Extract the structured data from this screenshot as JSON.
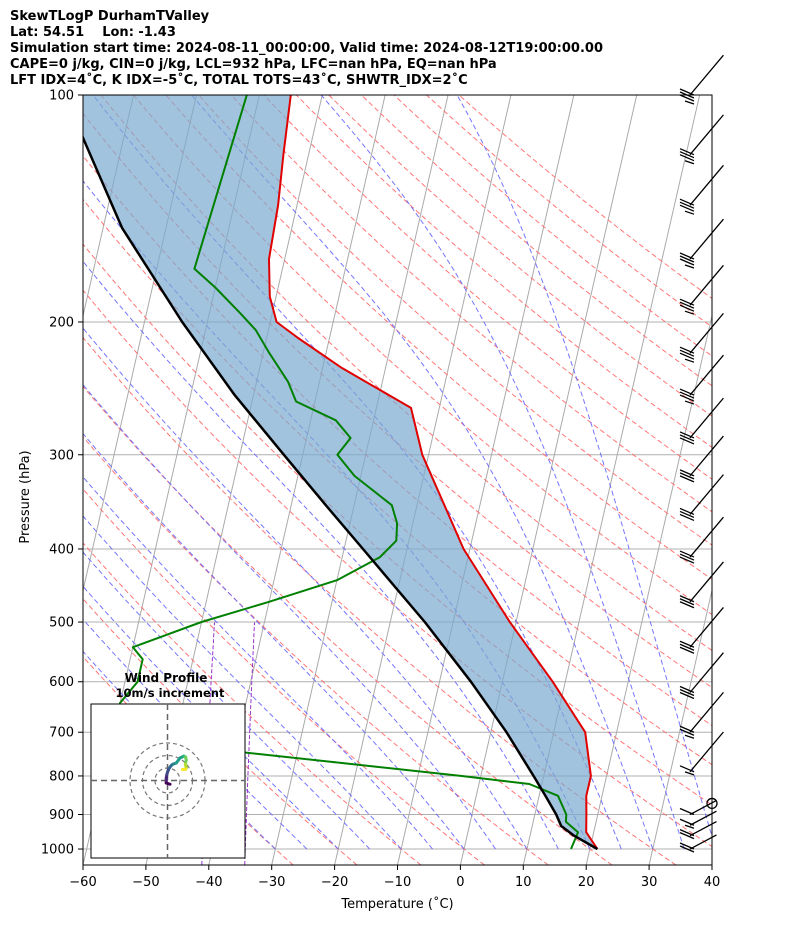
{
  "header": {
    "line1": "SkewTLogP DurhamTValley",
    "line2": "Lat: 54.51    Lon: -1.43",
    "line3": "Simulation start time: 2024-08-11_00:00:00, Valid time: 2024-08-12T19:00:00.00",
    "line4": "CAPE=0 j/kg, CIN=0 j/kg, LCL=932 hPa, LFC=nan hPa, EQ=nan hPa",
    "line5": "LFT IDX=4˚C, K IDX=-5˚C, TOTAL TOTS=43˚C, SHWTR_IDX=2˚C"
  },
  "chart_data": {
    "type": "line",
    "skew_t": true,
    "xlabel": "Temperature (˚C)",
    "ylabel": "Pressure (hPa)",
    "xlim": [
      -60,
      40
    ],
    "ylim": [
      1050,
      100
    ],
    "y_scale": "log",
    "grid": true,
    "xticks": [
      -60,
      -50,
      -40,
      -30,
      -20,
      -10,
      0,
      10,
      20,
      30,
      40
    ],
    "xtick_labels": [
      "−60",
      "−50",
      "−40",
      "−30",
      "−20",
      "−10",
      "0",
      "10",
      "20",
      "30",
      "40"
    ],
    "yticks": [
      100,
      200,
      300,
      400,
      500,
      600,
      700,
      800,
      900,
      1000
    ],
    "ytick_labels": [
      "100",
      "200",
      "300",
      "400",
      "500",
      "600",
      "700",
      "800",
      "900",
      "1000"
    ],
    "colors": {
      "temperature": "#e00000",
      "dewpoint": "#008000",
      "parcel": "#000000",
      "shade": "#7aa9cf",
      "dry_adiabat": "#ff6666",
      "moist_adiabat": "#6666ff",
      "mixing_ratio": "#9933cc",
      "isotherm": "#aaaaaa"
    },
    "series": [
      {
        "key": "temperature",
        "p": [
          1000,
          950,
          900,
          850,
          800,
          700,
          600,
          500,
          400,
          300,
          260,
          230,
          210,
          200,
          185,
          165,
          140,
          120,
          100
        ],
        "values": [
          21.2,
          18.8,
          18.2,
          17.5,
          17.5,
          15.0,
          8.0,
          -1.0,
          -11.0,
          -21.0,
          -24.5,
          -37.0,
          -45.0,
          -49.0,
          -51.0,
          -52.5,
          -53.0,
          -54.0,
          -55.0
        ]
      },
      {
        "key": "dewpoint",
        "p": [
          1000,
          950,
          920,
          900,
          850,
          820,
          800,
          720,
          680,
          640,
          600,
          560,
          540,
          500,
          470,
          440,
          410,
          390,
          370,
          350,
          320,
          300,
          285,
          270,
          255,
          240,
          220,
          205,
          195,
          180,
          170,
          100
        ],
        "values": [
          17.0,
          17.5,
          15.2,
          15.0,
          13.0,
          8.0,
          -3.0,
          -55.0,
          -60.0,
          -60.0,
          -58.0,
          -58.0,
          -60.0,
          -50.0,
          -40.0,
          -30.0,
          -24.0,
          -22.0,
          -22.5,
          -24.0,
          -31.0,
          -34.5,
          -33.0,
          -36.0,
          -43.0,
          -45.0,
          -49.0,
          -52.0,
          -55.0,
          -60.0,
          -64.0,
          -62.0
        ]
      },
      {
        "key": "parcel",
        "p": [
          1000,
          960,
          932,
          900,
          850,
          800,
          700,
          600,
          500,
          400,
          350,
          300,
          250,
          200,
          150,
          100
        ],
        "values": [
          21.2,
          17.0,
          14.6,
          13.4,
          11.0,
          8.4,
          2.5,
          -5.0,
          -14.5,
          -27.0,
          -34.5,
          -43.0,
          -53.0,
          -64.0,
          -77.0,
          -91.0
        ]
      }
    ],
    "inset": {
      "title": "Wind Profile",
      "subtitle": "10m/s increment",
      "rings_ms": [
        10,
        20,
        30
      ],
      "hodograph_uv": [
        [
          2,
          -3
        ],
        [
          -1,
          -2
        ],
        [
          -1,
          0
        ],
        [
          -1,
          2
        ],
        [
          -0.5,
          5
        ],
        [
          0.5,
          8
        ],
        [
          1.5,
          10
        ],
        [
          3,
          12
        ],
        [
          4.2,
          13
        ],
        [
          7,
          14
        ],
        [
          10,
          18
        ],
        [
          13,
          19.5
        ],
        [
          13.8,
          19
        ],
        [
          14.5,
          18.8
        ],
        [
          15,
          16.5
        ],
        [
          14.3,
          13
        ],
        [
          15,
          10
        ],
        [
          14.5,
          9
        ],
        [
          12,
          8.8
        ]
      ]
    },
    "wind_barbs": {
      "pressures": [
        100,
        120,
        140,
        165,
        190,
        220,
        250,
        285,
        320,
        360,
        410,
        470,
        540,
        620,
        700,
        790,
        870,
        900,
        930,
        960,
        1000
      ],
      "speeds_kt": [
        35,
        35,
        35,
        35,
        35,
        35,
        35,
        30,
        30,
        30,
        30,
        30,
        30,
        30,
        25,
        15,
        0,
        10,
        15,
        20,
        20
      ],
      "calm_pressure": 870
    }
  }
}
